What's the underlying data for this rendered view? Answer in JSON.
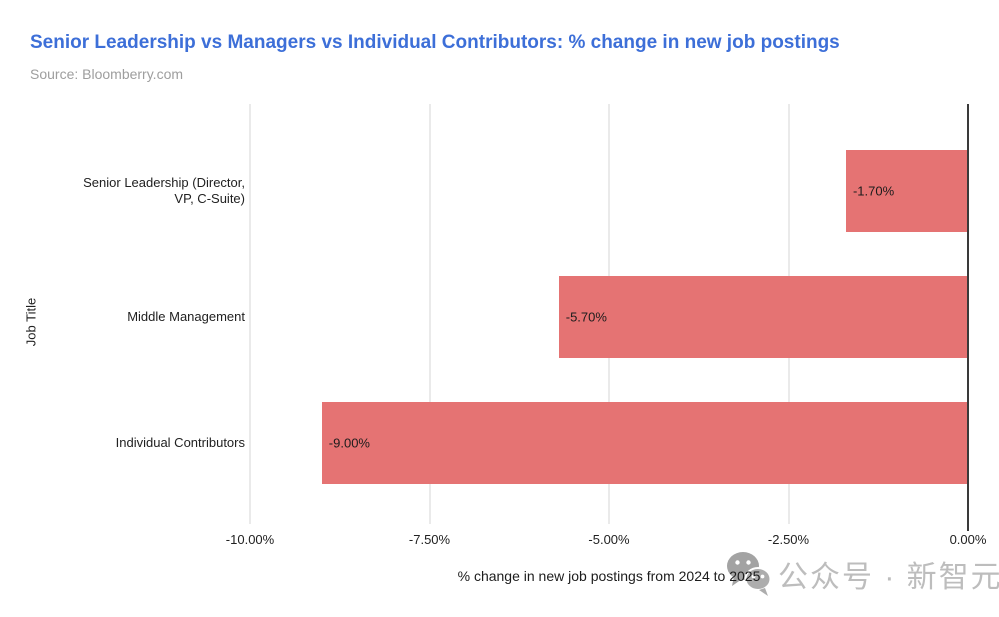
{
  "page": {
    "title": "Senior Leadership vs Managers vs Individual Contributors: % change in new job postings",
    "subtitle": "Source: Bloomberry.com"
  },
  "watermark": {
    "icon": "wechat-icon",
    "text": "公众号 · 新智元"
  },
  "colors": {
    "title": "#3D6FD8",
    "subtitle": "#9E9E9E",
    "bar": "#E57373",
    "gridline": "#D6D6D6",
    "zero_axis": "#3A3A3A",
    "label_text": "#212121",
    "watermark_text": "#BDBDBD",
    "watermark_icon": "#A3A3A3"
  },
  "chart_data": {
    "type": "bar",
    "orientation": "horizontal",
    "title": "Senior Leadership vs Managers vs Individual Contributors: % change in new job postings",
    "source": "Source: Bloomberry.com",
    "xlabel": "% change in new job postings from 2024 to 2025",
    "ylabel": "Job Title",
    "categories": [
      "Senior Leadership (Director, VP, C-Suite)",
      "Middle Management",
      "Individual Contributors"
    ],
    "category_label_lines": [
      [
        "Senior Leadership (Director,",
        "VP, C-Suite)"
      ],
      [
        "Middle Management"
      ],
      [
        "Individual Contributors"
      ]
    ],
    "values": [
      -1.7,
      -5.7,
      -9.0
    ],
    "value_labels": [
      "-1.70%",
      "-5.70%",
      "-9.00%"
    ],
    "xlim": [
      -10,
      0
    ],
    "xticks": [
      {
        "value": -10,
        "label": "-10.00%"
      },
      {
        "value": -7.5,
        "label": "-7.50%"
      },
      {
        "value": -5,
        "label": "-5.00%"
      },
      {
        "value": -2.5,
        "label": "-2.50%"
      },
      {
        "value": 0,
        "label": "0.00%"
      }
    ],
    "grid": "vertical",
    "legend": "none",
    "bar_color": "#E57373"
  }
}
